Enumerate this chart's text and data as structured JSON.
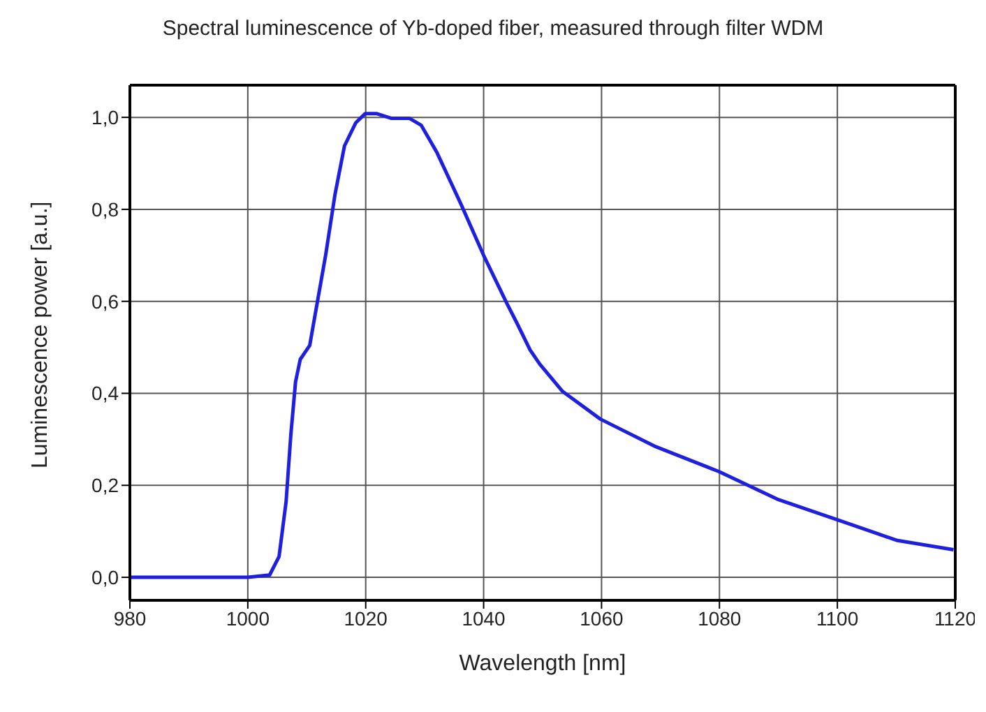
{
  "chart_data": {
    "type": "line",
    "title": "Spectral luminescence of Yb-doped fiber, measured through filter WDM",
    "xlabel": "Wavelength [nm]",
    "ylabel": "Luminescence power  [a.u.]",
    "xlim": [
      980,
      1120
    ],
    "xticks": [
      980,
      1000,
      1020,
      1040,
      1060,
      1080,
      1100,
      1120
    ],
    "ylim": [
      -0.05,
      1.07
    ],
    "yticks": [
      {
        "value": 0,
        "label": "0,0"
      },
      {
        "value": 0.2,
        "label": "0,2"
      },
      {
        "value": 0.4,
        "label": "0,4"
      },
      {
        "value": 0.6,
        "label": "0,6"
      },
      {
        "value": 0.8,
        "label": "0,8"
      },
      {
        "value": 1,
        "label": "1,0"
      }
    ],
    "grid": true,
    "legend": false,
    "marker": "none",
    "line_style": "solid",
    "series": [
      {
        "color": "#1f1fe0",
        "x": [
          980,
          990,
          1000,
          1003.7,
          1005.3,
          1006.5,
          1007.3,
          1008.1,
          1008.9,
          1010.5,
          1011.6,
          1013.2,
          1014.8,
          1016.4,
          1018.3,
          1019.9,
          1021.9,
          1024.3,
          1027.4,
          1029.4,
          1032.1,
          1036.1,
          1040,
          1044,
          1045.6,
          1047.9,
          1049.5,
          1053.4,
          1059.8,
          1069.2,
          1079.9,
          1089.8,
          1100,
          1110.2,
          1119.7
        ],
        "values": [
          0,
          0,
          0,
          0.005,
          0.045,
          0.165,
          0.31,
          0.425,
          0.474,
          0.504,
          0.584,
          0.7,
          0.833,
          0.938,
          0.988,
          1.008,
          1.008,
          0.998,
          0.998,
          0.983,
          0.923,
          0.813,
          0.7,
          0.594,
          0.554,
          0.494,
          0.464,
          0.404,
          0.344,
          0.284,
          0.23,
          0.17,
          0.125,
          0.08,
          0.06
        ]
      }
    ]
  }
}
